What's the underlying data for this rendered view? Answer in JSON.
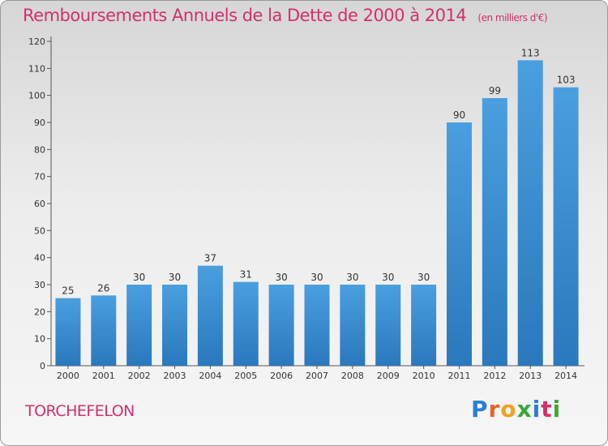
{
  "header": {
    "title": "Remboursements Annuels de la Dette de 2000 à 2014",
    "unit": "(en milliers d'€)"
  },
  "footer": {
    "commune": "TORCHEFELON",
    "logo_letters": [
      "P",
      "r",
      "o",
      "x",
      "i",
      "t",
      "i"
    ]
  },
  "chart_data": {
    "type": "bar",
    "categories": [
      "2000",
      "2001",
      "2002",
      "2003",
      "2004",
      "2005",
      "2006",
      "2007",
      "2008",
      "2009",
      "2010",
      "2011",
      "2012",
      "2013",
      "2014"
    ],
    "values": [
      25,
      26,
      30,
      30,
      37,
      31,
      30,
      30,
      30,
      30,
      30,
      90,
      99,
      113,
      103
    ],
    "data_labels": [
      "25",
      "26",
      "30",
      "30",
      "37",
      "31",
      "30",
      "30",
      "30",
      "30",
      "30",
      "90",
      "99",
      "113",
      "103"
    ],
    "yticks": [
      "0",
      "10",
      "20",
      "30",
      "40",
      "50",
      "60",
      "70",
      "80",
      "90",
      "100",
      "110",
      "120"
    ],
    "ylim": [
      0,
      120
    ],
    "grid": false,
    "bar_color": "#4a9fe0",
    "bar_color_dark": "#2a78bd",
    "text_color": "#d42f6e"
  }
}
